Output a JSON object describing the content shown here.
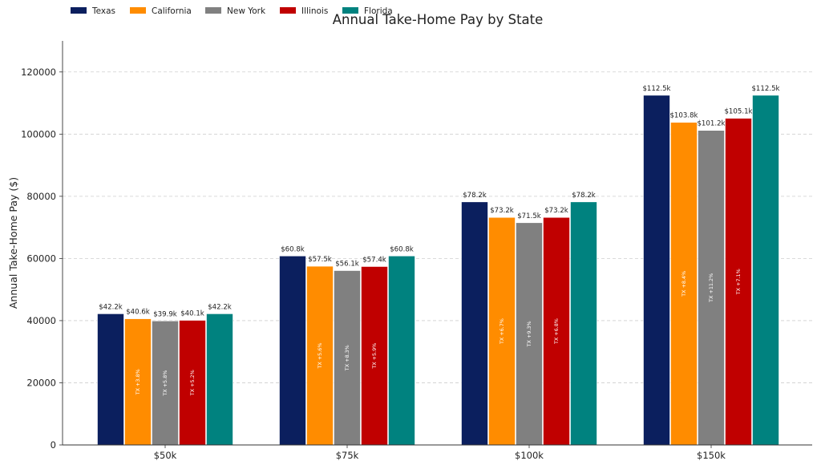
{
  "chart_data": {
    "type": "bar",
    "title": "Annual Take-Home Pay by State",
    "xlabel": "",
    "ylabel": "Annual Take-Home Pay ($)",
    "categories": [
      "$50k",
      "$75k",
      "$100k",
      "$150k"
    ],
    "ylim": [
      0,
      130000
    ],
    "yticks": [
      "0",
      "20000",
      "40000",
      "60000",
      "80000",
      "100000",
      "120000"
    ],
    "ytick_values": [
      0,
      20000,
      40000,
      60000,
      80000,
      100000,
      120000
    ],
    "grid": "y-dashed",
    "legend_position": "top-left",
    "series": [
      {
        "name": "Texas",
        "color": "#0b1f5e",
        "values": [
          42200,
          60800,
          78200,
          112500
        ],
        "labels": [
          "$42.2k",
          "$60.8k",
          "$78.2k",
          "$112.5k"
        ],
        "diff_labels": [
          "",
          "",
          "",
          ""
        ]
      },
      {
        "name": "California",
        "color": "#ff8c00",
        "values": [
          40600,
          57500,
          73200,
          103800
        ],
        "labels": [
          "$40.6k",
          "$57.5k",
          "$73.2k",
          "$103.8k"
        ],
        "diff_labels": [
          "TX +3.8%",
          "TX +5.6%",
          "TX +6.7%",
          "TX +8.4%"
        ]
      },
      {
        "name": "New York",
        "color": "#808080",
        "values": [
          39900,
          56100,
          71500,
          101200
        ],
        "labels": [
          "$39.9k",
          "$56.1k",
          "$71.5k",
          "$101.2k"
        ],
        "diff_labels": [
          "TX +5.8%",
          "TX +8.3%",
          "TX +9.3%",
          "TX +11.2%"
        ]
      },
      {
        "name": "Illinois",
        "color": "#c00000",
        "values": [
          40100,
          57400,
          73200,
          105100
        ],
        "labels": [
          "$40.1k",
          "$57.4k",
          "$73.2k",
          "$105.1k"
        ],
        "diff_labels": [
          "TX +5.2%",
          "TX +5.9%",
          "TX +6.8%",
          "TX +7.1%"
        ]
      },
      {
        "name": "Florida",
        "color": "#00827f",
        "values": [
          42200,
          60800,
          78200,
          112500
        ],
        "labels": [
          "$42.2k",
          "$60.8k",
          "$78.2k",
          "$112.5k"
        ],
        "diff_labels": [
          "",
          "",
          "",
          ""
        ]
      }
    ]
  }
}
